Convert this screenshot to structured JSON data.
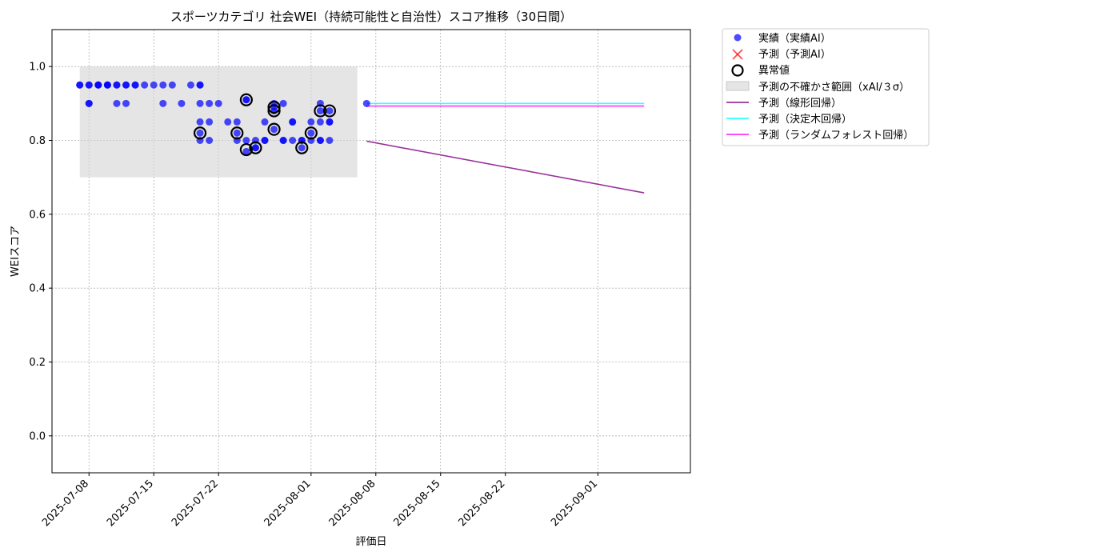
{
  "chart_data": {
    "type": "scatter",
    "title": "スポーツカテゴリ 社会WEI（持続可能性と自治性）スコア推移（30日間）",
    "xlabel": "評価日",
    "ylabel": "WEIスコア",
    "xlim": [
      "2025-07-04",
      "2025-09-11"
    ],
    "ylim": [
      -0.1,
      1.1
    ],
    "yticks": [
      0.0,
      0.2,
      0.4,
      0.6,
      0.8,
      1.0
    ],
    "xticks": [
      "2025-07-08",
      "2025-07-15",
      "2025-07-22",
      "2025-08-01",
      "2025-08-08",
      "2025-08-15",
      "2025-08-22",
      "2025-09-01"
    ],
    "grid": true,
    "legend_position": "outside-upper-right",
    "colors": {
      "actual": "#0000ff",
      "predicted": "#ff0000",
      "anomaly": "#000000",
      "uncertainty": "#d3d3d3",
      "linear": "#800080",
      "tree": "#00ffff",
      "forest": "#ff00ff"
    },
    "legend": {
      "actual": "実績（実績AI）",
      "predicted": "予測（予測AI）",
      "anomaly": "異常値",
      "uncertainty": "予測の不確かさ範囲（xAI/３σ）",
      "linear": "予測（線形回帰）",
      "tree": "予測（決定木回帰）",
      "forest": "予測（ランダムフォレスト回帰）"
    },
    "uncertainty_band": {
      "x": [
        "2025-07-07",
        "2025-08-06"
      ],
      "y": [
        0.7,
        1.0
      ]
    },
    "actual": [
      [
        "2025-07-07",
        0.95
      ],
      [
        "2025-07-07",
        0.95
      ],
      [
        "2025-07-08",
        0.9
      ],
      [
        "2025-07-08",
        0.9
      ],
      [
        "2025-07-08",
        0.95
      ],
      [
        "2025-07-08",
        0.95
      ],
      [
        "2025-07-09",
        0.95
      ],
      [
        "2025-07-09",
        0.95
      ],
      [
        "2025-07-09",
        0.95
      ],
      [
        "2025-07-10",
        0.95
      ],
      [
        "2025-07-10",
        0.95
      ],
      [
        "2025-07-10",
        0.95
      ],
      [
        "2025-07-11",
        0.95
      ],
      [
        "2025-07-11",
        0.9
      ],
      [
        "2025-07-11",
        0.95
      ],
      [
        "2025-07-12",
        0.9
      ],
      [
        "2025-07-12",
        0.95
      ],
      [
        "2025-07-12",
        0.95
      ],
      [
        "2025-07-13",
        0.95
      ],
      [
        "2025-07-13",
        0.95
      ],
      [
        "2025-07-14",
        0.95
      ],
      [
        "2025-07-15",
        0.95
      ],
      [
        "2025-07-16",
        0.9
      ],
      [
        "2025-07-16",
        0.95
      ],
      [
        "2025-07-17",
        0.95
      ],
      [
        "2025-07-18",
        0.9
      ],
      [
        "2025-07-19",
        0.95
      ],
      [
        "2025-07-20",
        0.95
      ],
      [
        "2025-07-20",
        0.95
      ],
      [
        "2025-07-20",
        0.9
      ],
      [
        "2025-07-20",
        0.85
      ],
      [
        "2025-07-20",
        0.82
      ],
      [
        "2025-07-20",
        0.8
      ],
      [
        "2025-07-21",
        0.9
      ],
      [
        "2025-07-21",
        0.85
      ],
      [
        "2025-07-21",
        0.8
      ],
      [
        "2025-07-22",
        0.9
      ],
      [
        "2025-07-23",
        0.85
      ],
      [
        "2025-07-24",
        0.85
      ],
      [
        "2025-07-24",
        0.82
      ],
      [
        "2025-07-24",
        0.8
      ],
      [
        "2025-07-25",
        0.91
      ],
      [
        "2025-07-25",
        0.91
      ],
      [
        "2025-07-25",
        0.8
      ],
      [
        "2025-07-25",
        0.77
      ],
      [
        "2025-07-26",
        0.78
      ],
      [
        "2025-07-26",
        0.8
      ],
      [
        "2025-07-26",
        0.78
      ],
      [
        "2025-07-27",
        0.85
      ],
      [
        "2025-07-27",
        0.8
      ],
      [
        "2025-07-27",
        0.8
      ],
      [
        "2025-07-28",
        0.89
      ],
      [
        "2025-07-28",
        0.88
      ],
      [
        "2025-07-28",
        0.9
      ],
      [
        "2025-07-28",
        0.83
      ],
      [
        "2025-07-29",
        0.9
      ],
      [
        "2025-07-29",
        0.8
      ],
      [
        "2025-07-29",
        0.8
      ],
      [
        "2025-07-30",
        0.85
      ],
      [
        "2025-07-30",
        0.85
      ],
      [
        "2025-07-30",
        0.8
      ],
      [
        "2025-07-31",
        0.78
      ],
      [
        "2025-07-31",
        0.8
      ],
      [
        "2025-07-31",
        0.8
      ],
      [
        "2025-08-01",
        0.85
      ],
      [
        "2025-08-01",
        0.82
      ],
      [
        "2025-08-01",
        0.8
      ],
      [
        "2025-08-02",
        0.9
      ],
      [
        "2025-08-02",
        0.88
      ],
      [
        "2025-08-02",
        0.85
      ],
      [
        "2025-08-02",
        0.8
      ],
      [
        "2025-08-02",
        0.8
      ],
      [
        "2025-08-03",
        0.88
      ],
      [
        "2025-08-03",
        0.85
      ],
      [
        "2025-08-03",
        0.85
      ],
      [
        "2025-08-03",
        0.8
      ],
      [
        "2025-08-07",
        0.9
      ]
    ],
    "predicted": [],
    "anomalies": [
      [
        "2025-07-20",
        0.82
      ],
      [
        "2025-07-24",
        0.82
      ],
      [
        "2025-07-25",
        0.91
      ],
      [
        "2025-07-25",
        0.775
      ],
      [
        "2025-07-26",
        0.78
      ],
      [
        "2025-07-28",
        0.89
      ],
      [
        "2025-07-28",
        0.88
      ],
      [
        "2025-07-28",
        0.83
      ],
      [
        "2025-07-31",
        0.78
      ],
      [
        "2025-08-01",
        0.82
      ],
      [
        "2025-08-02",
        0.88
      ],
      [
        "2025-08-03",
        0.88
      ]
    ],
    "lines": {
      "linear": [
        [
          "2025-08-07",
          0.798
        ],
        [
          "2025-09-06",
          0.658
        ]
      ],
      "tree": [
        [
          "2025-08-07",
          0.9
        ],
        [
          "2025-09-06",
          0.9
        ]
      ],
      "forest": [
        [
          "2025-08-07",
          0.893
        ],
        [
          "2025-09-06",
          0.893
        ]
      ]
    }
  }
}
